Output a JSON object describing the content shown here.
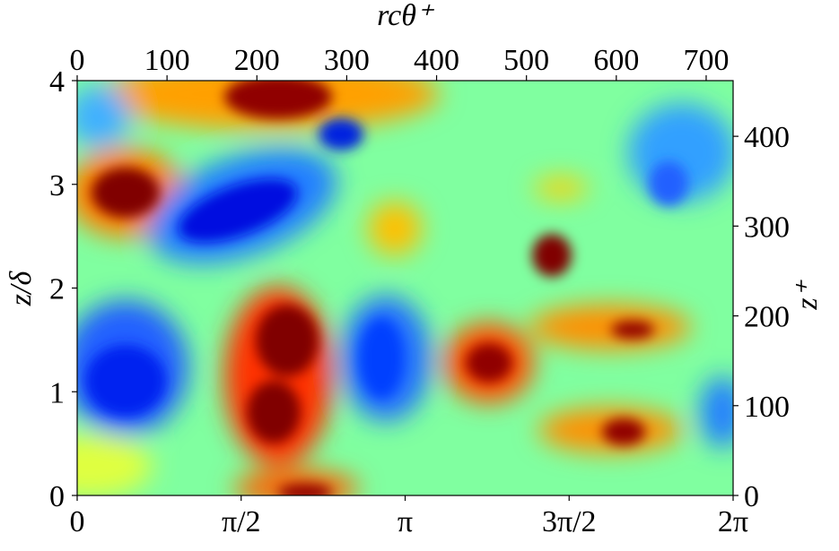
{
  "chart_data": {
    "type": "contour",
    "x2label": "rcθ⁺",
    "ylabel": "z/δ",
    "y2label": "z⁺",
    "xlim": [
      0,
      6.2832
    ],
    "xticks": [
      0,
      {
        "value": 1.5708,
        "label": "π/2"
      },
      {
        "value": 3.1416,
        "label": "π"
      },
      {
        "value": 4.7124,
        "label": "3π/2"
      },
      {
        "value": 6.2832,
        "label": "2π"
      }
    ],
    "x2lim": [
      0,
      730
    ],
    "x2ticks": [
      0,
      100,
      200,
      300,
      400,
      500,
      600,
      700
    ],
    "ylim": [
      0,
      4
    ],
    "yticks": [
      0,
      1,
      2,
      3,
      4
    ],
    "y2lim": [
      0,
      462
    ],
    "y2ticks": [
      0,
      100,
      200,
      300,
      400
    ]
  }
}
